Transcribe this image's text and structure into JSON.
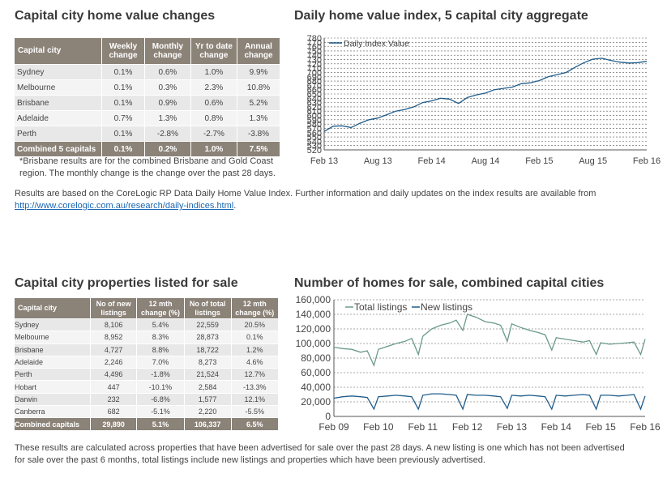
{
  "sections": {
    "home_values_title": "Capital city home value changes",
    "index_chart_title": "Daily home value index, 5 capital city aggregate",
    "listings_title": "Capital city properties listed for sale",
    "homes_chart_title": "Number of homes for sale, combined capital cities"
  },
  "table1": {
    "headers": [
      "Capital city",
      "Weekly change",
      "Monthly change",
      "Yr to date change",
      "Annual change"
    ],
    "rows": [
      [
        "Sydney",
        "0.1%",
        "0.6%",
        "1.0%",
        "9.9%"
      ],
      [
        "Melbourne",
        "0.1%",
        "0.3%",
        "2.3%",
        "10.8%"
      ],
      [
        "Brisbane",
        "0.1%",
        "0.9%",
        "0.6%",
        "5.2%"
      ],
      [
        "Adelaide",
        "0.7%",
        "1.3%",
        "0.8%",
        "1.3%"
      ],
      [
        "Perth",
        "0.1%",
        "-2.8%",
        "-2.7%",
        "-3.8%"
      ]
    ],
    "total": [
      "Combined 5 capitals",
      "0.1%",
      "0.2%",
      "1.0%",
      "7.5%"
    ],
    "footnote_1": "*Brisbane results are for the combined Brisbane and Gold Coast",
    "footnote_2": "region. The monthly change is the change over the past 28 days."
  },
  "results_note": {
    "text": "Results are based on the CoreLogic RP Data Daily Home Value Index.  Further information and daily updates on the index results are available from",
    "link": "http://www.corelogic.com.au/research/daily-indices.html",
    "suffix": "."
  },
  "table2": {
    "headers": [
      "Capital city",
      "No of new listings",
      "12 mth change (%)",
      "No of total listings",
      "12 mth change (%)"
    ],
    "rows": [
      [
        "Sydney",
        "8,106",
        "5.4%",
        "22,559",
        "20.5%"
      ],
      [
        "Melbourne",
        "8,952",
        "8.3%",
        "28,873",
        "0.1%"
      ],
      [
        "Brisbane",
        "4,727",
        "8.8%",
        "18,722",
        "1.2%"
      ],
      [
        "Adelaide",
        "2,246",
        "7.0%",
        "8,273",
        "4.6%"
      ],
      [
        "Perth",
        "4,496",
        "-1.8%",
        "21,524",
        "12.7%"
      ],
      [
        "Hobart",
        "447",
        "-10.1%",
        "2,584",
        "-13.3%"
      ],
      [
        "Darwin",
        "232",
        "-6.8%",
        "1,577",
        "12.1%"
      ],
      [
        "Canberra",
        "682",
        "-5.1%",
        "2,220",
        "-5.5%"
      ]
    ],
    "total": [
      "Combined capitals",
      "29,890",
      "5.1%",
      "106,337",
      "6.5%"
    ]
  },
  "bottom_note": {
    "line1": "These results are calculated across properties that have been advertised for sale over the past 28 days.  A new listing is one which has not been advertised",
    "line2": "for sale over the past 6 months, total listings include new listings and properties which have been previously advertised."
  },
  "chart_data": [
    {
      "type": "line",
      "title": "Daily home value index, 5 capital city aggregate",
      "x_tick_labels": [
        "Feb 13",
        "Aug 13",
        "Feb 14",
        "Aug 14",
        "Feb 15",
        "Aug 15",
        "Feb 16"
      ],
      "y_ticks": [
        520,
        530,
        540,
        550,
        560,
        570,
        580,
        590,
        600,
        610,
        620,
        630,
        640,
        650,
        660,
        670,
        680,
        690,
        700,
        710,
        720,
        730,
        740,
        750,
        760,
        770,
        780
      ],
      "ylim": [
        520,
        780
      ],
      "grid": true,
      "legend_position": "top-left",
      "color": "#1f5c8a",
      "series": [
        {
          "name": "Daily Index Value",
          "x": [
            "Feb 13",
            "Mar 13",
            "Apr 13",
            "May 13",
            "Jun 13",
            "Jul 13",
            "Aug 13",
            "Sep 13",
            "Oct 13",
            "Nov 13",
            "Dec 13",
            "Jan 14",
            "Feb 14",
            "Mar 14",
            "Apr 14",
            "May 14",
            "Jun 14",
            "Jul 14",
            "Aug 14",
            "Sep 14",
            "Oct 14",
            "Nov 14",
            "Dec 14",
            "Jan 15",
            "Feb 15",
            "Mar 15",
            "Apr 15",
            "May 15",
            "Jun 15",
            "Jul 15",
            "Aug 15",
            "Sep 15",
            "Oct 15",
            "Nov 15",
            "Dec 15",
            "Jan 16",
            "Feb 16"
          ],
          "values": [
            563,
            575,
            576,
            572,
            582,
            590,
            594,
            602,
            610,
            614,
            620,
            630,
            634,
            640,
            638,
            628,
            642,
            648,
            652,
            660,
            663,
            666,
            674,
            676,
            681,
            690,
            695,
            700,
            712,
            723,
            731,
            733,
            728,
            724,
            722,
            723,
            726
          ]
        }
      ]
    },
    {
      "type": "line",
      "title": "Number of homes for sale, combined capital cities",
      "x_tick_labels": [
        "Feb 09",
        "Feb 10",
        "Feb 11",
        "Feb 12",
        "Feb 13",
        "Feb 14",
        "Feb 15",
        "Feb 16"
      ],
      "y_tick_labels": [
        "0",
        "20,000",
        "40,000",
        "60,000",
        "80,000",
        "100,000",
        "120,000",
        "140,000",
        "160,000"
      ],
      "ylim": [
        0,
        160000
      ],
      "grid": true,
      "legend_position": "top-left",
      "x": [
        2009.1,
        2009.3,
        2009.5,
        2009.7,
        2009.85,
        2010.0,
        2010.1,
        2010.3,
        2010.5,
        2010.7,
        2010.85,
        2011.0,
        2011.1,
        2011.3,
        2011.5,
        2011.7,
        2011.85,
        2012.0,
        2012.1,
        2012.3,
        2012.5,
        2012.7,
        2012.85,
        2013.0,
        2013.1,
        2013.3,
        2013.5,
        2013.7,
        2013.85,
        2014.0,
        2014.1,
        2014.3,
        2014.5,
        2014.7,
        2014.85,
        2015.0,
        2015.1,
        2015.3,
        2015.5,
        2015.7,
        2015.85,
        2016.0,
        2016.1
      ],
      "series": [
        {
          "name": "Total listings",
          "color": "#6a9a8a",
          "values": [
            95000,
            93000,
            92000,
            88000,
            90000,
            70000,
            92000,
            96000,
            100000,
            103000,
            107000,
            85000,
            110000,
            120000,
            125000,
            128000,
            132000,
            118000,
            140000,
            136000,
            130000,
            128000,
            125000,
            103000,
            127000,
            122000,
            118000,
            115000,
            112000,
            91000,
            108000,
            106000,
            104000,
            102000,
            104000,
            85000,
            101000,
            99000,
            100000,
            101000,
            102000,
            85000,
            106000
          ]
        },
        {
          "name": "New listings",
          "color": "#1f5c8a",
          "values": [
            25000,
            27000,
            28000,
            27000,
            26000,
            10000,
            27000,
            28000,
            29000,
            28000,
            27000,
            10000,
            29000,
            31000,
            31000,
            30000,
            29000,
            10000,
            30000,
            29000,
            29000,
            28000,
            27000,
            11000,
            29000,
            28000,
            29000,
            28000,
            27000,
            10000,
            29000,
            28000,
            29000,
            30000,
            29000,
            10000,
            29000,
            29000,
            28000,
            29000,
            30000,
            10000,
            28000
          ]
        }
      ]
    }
  ]
}
